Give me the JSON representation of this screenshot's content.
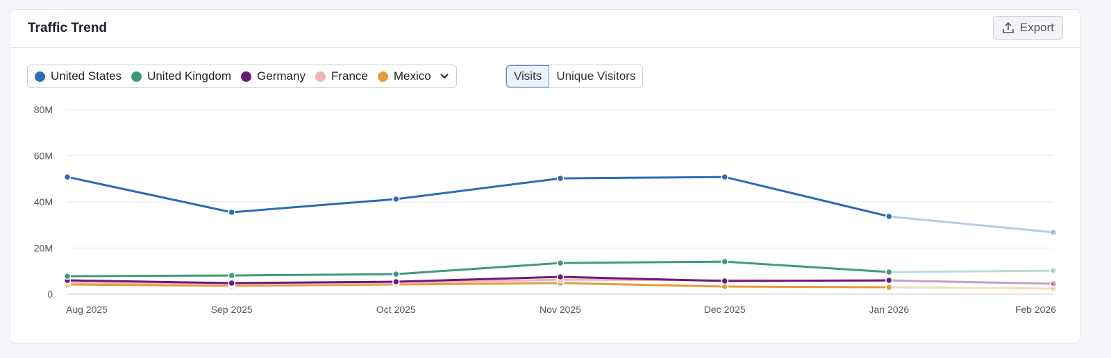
{
  "header": {
    "title": "Traffic Trend",
    "export_label": "Export"
  },
  "toggle": {
    "options": [
      "Visits",
      "Unique Visitors"
    ],
    "selected": "Visits"
  },
  "colors": {
    "United States": "#2c6bb8",
    "United Kingdom": "#3e9a7e",
    "Germany": "#6c1a7a",
    "France": "#f0b3b8",
    "Mexico": "#e39d39"
  },
  "chart_data": {
    "type": "line",
    "categories": [
      "Aug 2025",
      "Sep 2025",
      "Oct 2025",
      "Nov 2025",
      "Dec 2025",
      "Jan 2026",
      "Feb 2026"
    ],
    "yticks": [
      "0",
      "20M",
      "40M",
      "60M",
      "80M"
    ],
    "ylim": [
      0,
      80
    ],
    "unit": "M",
    "grid": true,
    "legend": "top-left",
    "projected_from": "Jan 2026",
    "series": [
      {
        "name": "United States",
        "values": [
          50.8,
          35.5,
          41.2,
          50.2,
          50.8,
          33.7,
          26.8
        ]
      },
      {
        "name": "United Kingdom",
        "values": [
          7.8,
          8.1,
          8.7,
          13.5,
          14.1,
          9.6,
          10.2
        ]
      },
      {
        "name": "Germany",
        "values": [
          6.0,
          4.8,
          5.4,
          7.5,
          5.7,
          6.0,
          4.5
        ]
      },
      {
        "name": "France",
        "values": [
          5.2,
          4.2,
          4.8,
          6.3,
          6.0,
          5.7,
          4.5
        ]
      },
      {
        "name": "Mexico",
        "values": [
          4.2,
          3.6,
          4.2,
          4.8,
          3.3,
          3.0,
          2.4
        ]
      }
    ]
  }
}
